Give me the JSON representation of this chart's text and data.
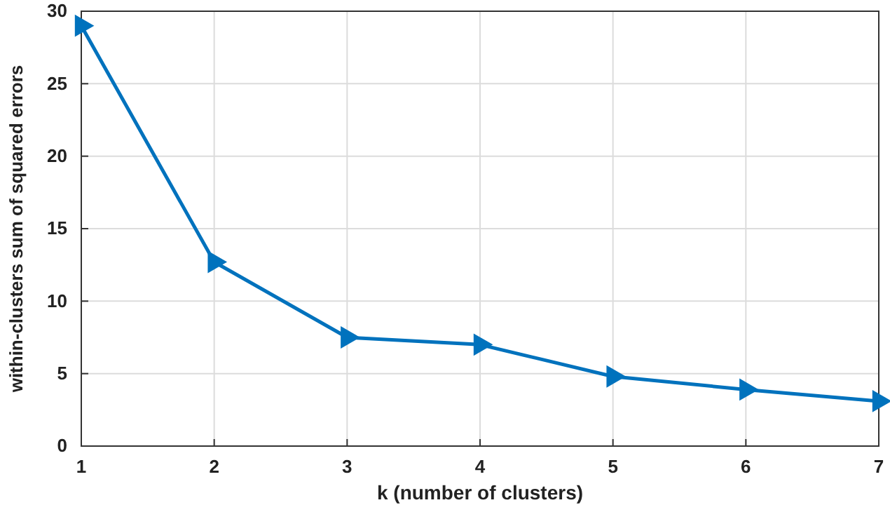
{
  "chart_data": {
    "type": "line",
    "xlabel": "k (number of clusters)",
    "ylabel": "within-clusters sum of squared errors",
    "x": [
      1,
      2,
      3,
      4,
      5,
      6,
      7
    ],
    "series": [
      {
        "color": "#0072bd",
        "values": [
          29,
          12.7,
          7.5,
          7.0,
          4.8,
          3.9,
          3.1
        ]
      }
    ],
    "xlim": [
      1,
      7
    ],
    "xticks": [
      1,
      2,
      3,
      4,
      5,
      6,
      7
    ],
    "ylim": [
      0,
      30
    ],
    "yticks": [
      0,
      5,
      10,
      15,
      20,
      25,
      30
    ],
    "grid": true,
    "marker": "triangle",
    "line_style": "solid"
  }
}
